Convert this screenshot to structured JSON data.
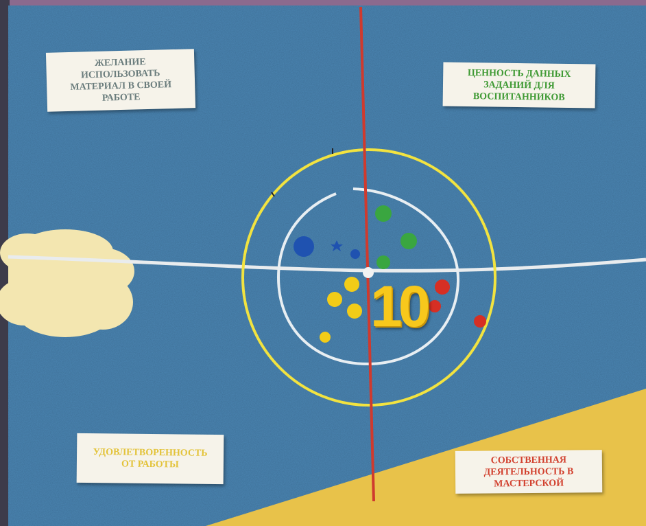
{
  "labels": {
    "top_left": {
      "text": "ЖЕЛАНИЕ\nИСПОЛЬЗОВАТЬ\nМАТЕРИАЛ В СВОЕЙ\nРАБОТЕ",
      "color": "#6b7d7d"
    },
    "top_right": {
      "text": "ЦЕННОСТЬ ДАННЫХ\nЗАДАНИЙ ДЛЯ\nВОСПИТАННИКОВ",
      "color": "#3f9a34"
    },
    "bottom_left": {
      "text": "УДОВЛЕТВОРЕННОСТЬ\nОТ РАБОТЫ",
      "color": "#e3c33a"
    },
    "bottom_right": {
      "text": "СОБСТВЕННАЯ\nДЕЯТЕЛЬНОСТЬ В\nМАСТЕРСКОЙ",
      "color": "#d2412f"
    }
  },
  "score": {
    "text": "10"
  },
  "colors": {
    "felt_blue": "#4b86b4",
    "sky_cloud": "#f3e6b0",
    "sand_yellow": "#e8c24a",
    "red_line": "#cf3a2e",
    "yellow_ring": "#f2e340",
    "white_ring": "#e8eef2"
  },
  "dots": {
    "blue": {
      "color": "#1f52b0"
    },
    "green": {
      "color": "#3aa640"
    },
    "yellow": {
      "color": "#f2cc18"
    },
    "red": {
      "color": "#d62f24"
    }
  }
}
